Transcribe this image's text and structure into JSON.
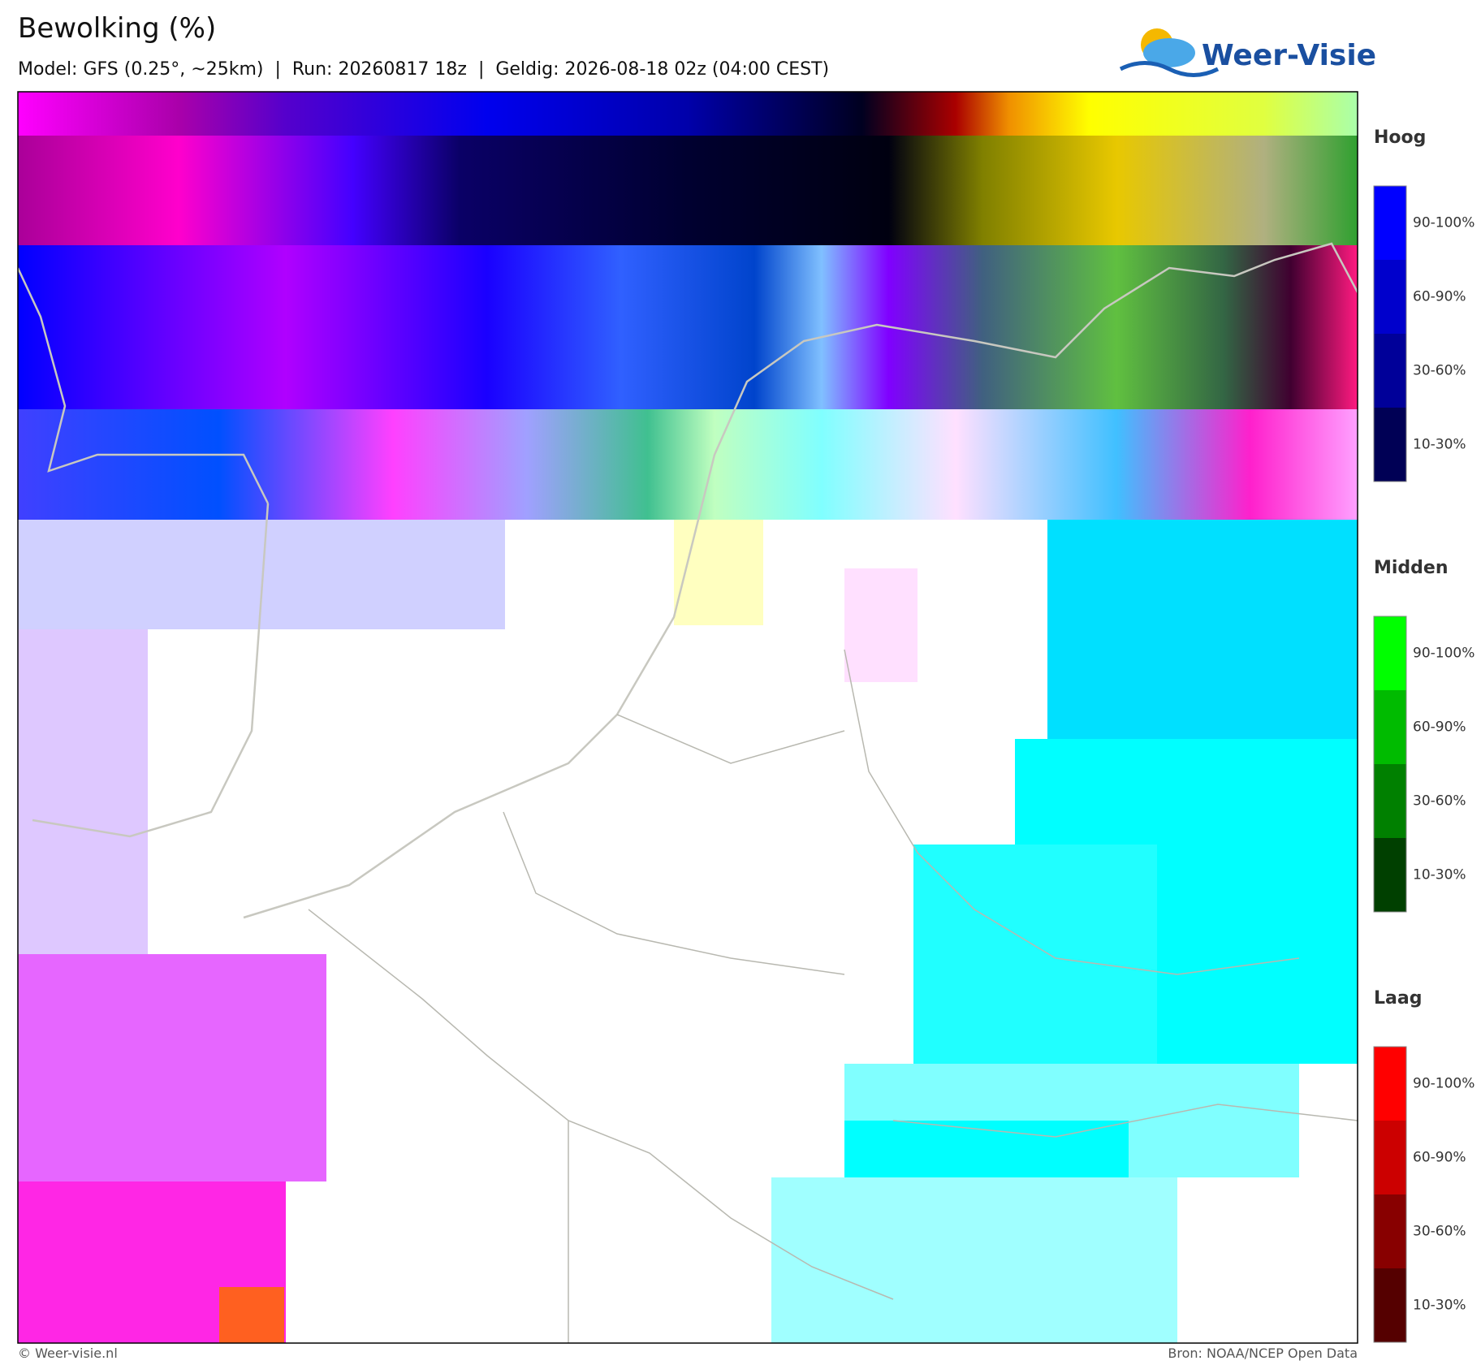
{
  "header": {
    "title": "Bewolking (%)",
    "subtitle": "Model: GFS (0.25°, ~25km)  |  Run: 20260817 18z  |  Geldig: 2026-08-18 02z (04:00 CEST)"
  },
  "logo": {
    "text": "Weer-Visie"
  },
  "legend": {
    "sections": [
      {
        "title": "Hoog",
        "labels": [
          "90-100%",
          "60-90%",
          "30-60%",
          "10-30%"
        ]
      },
      {
        "title": "Midden",
        "labels": [
          "90-100%",
          "60-90%",
          "30-60%",
          "10-30%"
        ]
      },
      {
        "title": "Laag",
        "labels": [
          "90-100%",
          "60-90%",
          "30-60%",
          "10-30%"
        ]
      }
    ]
  },
  "footer": {
    "left": "© Weer-visie.nl",
    "right": "Bron: NOAA/NCEP Open Data"
  }
}
